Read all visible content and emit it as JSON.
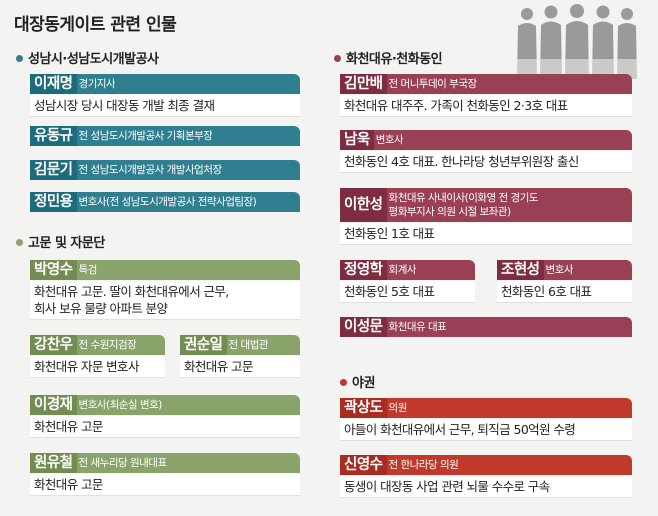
{
  "title": "대장동게이트 관련 인물",
  "colors": {
    "teal": "#2f7f91",
    "olive": "#8aa36a",
    "wine": "#9a4055",
    "red": "#c0392b"
  },
  "sections": {
    "seongnam": "성남시·성남도시개발공사",
    "advisors": "고문 및 자문단",
    "hwacheon": "화천대유·천화동인",
    "opposition": "야권"
  },
  "people": {
    "p1": {
      "name": "이재명",
      "role": "경기지사",
      "desc": "성남시장 당시 대장동 개발 최종 결재"
    },
    "p2": {
      "name": "유동규",
      "role": "전 성남도시개발공사 기획본부장"
    },
    "p3": {
      "name": "김문기",
      "role": "전 성남도시개발공사 개발사업처장"
    },
    "p4": {
      "name": "정민용",
      "role": "변호사(전 성남도시개발공사 전략사업팀장)"
    },
    "a1": {
      "name": "박영수",
      "role": "특검",
      "desc1": "화천대유 고문. 딸이 화천대유에서 근무,",
      "desc2": "회사 보유 물량 아파트 분양"
    },
    "a2": {
      "name": "강찬우",
      "role": "전 수원지검장",
      "desc": "화천대유 자문 변호사"
    },
    "a3": {
      "name": "권순일",
      "role": "전 대법관",
      "desc": "화천대유 고문"
    },
    "a4": {
      "name": "이경재",
      "role": "변호사(최순실 변호)",
      "desc": "화천대유 고문"
    },
    "a5": {
      "name": "원유철",
      "role": "전 새누리당 원내대표",
      "desc": "화천대유 고문"
    },
    "h1": {
      "name": "김만배",
      "role": "전 머니투데이 부국장",
      "desc": "화천대유 대주주. 가족이 천화동인 2·3호 대표"
    },
    "h2": {
      "name": "남욱",
      "role": "변호사",
      "desc": "천화동인 4호 대표. 한나라당 청년부위원장 출신"
    },
    "h3": {
      "name": "이한성",
      "role1": "화천대유 사내이사(이화영 전 경기도",
      "role2": "평화부지사 의원 시절 보좌관)",
      "desc": "천화동인 1호 대표"
    },
    "h4": {
      "name": "정영학",
      "role": "회계사",
      "desc": "천화동인 5호 대표"
    },
    "h5": {
      "name": "조현성",
      "role": "변호사",
      "desc": "천화동인 6호 대표"
    },
    "h6": {
      "name": "이성문",
      "role": "화천대유 대표"
    },
    "o1": {
      "name": "곽상도",
      "role": "의원",
      "desc": "아들이 화천대유에서 근무, 퇴직금 50억원 수령"
    },
    "o2": {
      "name": "신영수",
      "role": "전 한나라당 의원",
      "desc": "동생이 대장동 사업 관련 뇌물 수수로 구속"
    }
  }
}
